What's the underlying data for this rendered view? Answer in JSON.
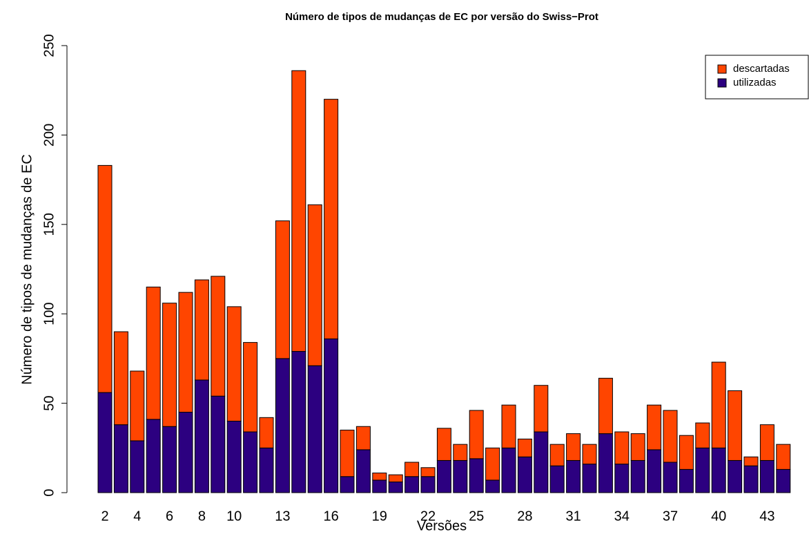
{
  "chart_data": {
    "type": "stacked_bar",
    "title": "Número de tipos de mudanças de EC por versão do Swiss−Prot",
    "x_label": "Versões",
    "y_label": "Número de tipos de mudanças de EC",
    "categories": [
      "2",
      null,
      "4",
      null,
      "6",
      null,
      "8",
      null,
      "10",
      null,
      null,
      "13",
      null,
      null,
      "16",
      null,
      null,
      "19",
      null,
      null,
      "22",
      null,
      null,
      "25",
      null,
      null,
      "28",
      null,
      null,
      "31",
      null,
      null,
      "34",
      null,
      null,
      "37",
      null,
      null,
      "40",
      null,
      null,
      "43",
      null
    ],
    "series": [
      {
        "name": "utilizadas",
        "color": "#2c0080",
        "values": [
          56,
          38,
          29,
          41,
          37,
          45,
          63,
          54,
          40,
          34,
          25,
          75,
          79,
          71,
          86,
          9,
          24,
          7,
          6,
          9,
          9,
          18,
          18,
          19,
          7,
          25,
          20,
          34,
          15,
          18,
          16,
          33,
          16,
          18,
          24,
          17,
          13,
          25,
          25,
          18,
          15,
          18,
          13
        ]
      },
      {
        "name": "descartadas",
        "color": "#ff4500",
        "values": [
          127,
          52,
          39,
          74,
          69,
          67,
          56,
          67,
          64,
          50,
          17,
          77,
          157,
          90,
          134,
          26,
          13,
          4,
          4,
          8,
          5,
          18,
          9,
          27,
          18,
          24,
          10,
          26,
          12,
          15,
          11,
          31,
          18,
          15,
          25,
          29,
          19,
          14,
          48,
          39,
          5,
          20,
          14
        ]
      }
    ],
    "ylim": [
      0,
      250
    ],
    "yticks": [
      0,
      50,
      100,
      150,
      200,
      250
    ],
    "legend": "top-right"
  }
}
